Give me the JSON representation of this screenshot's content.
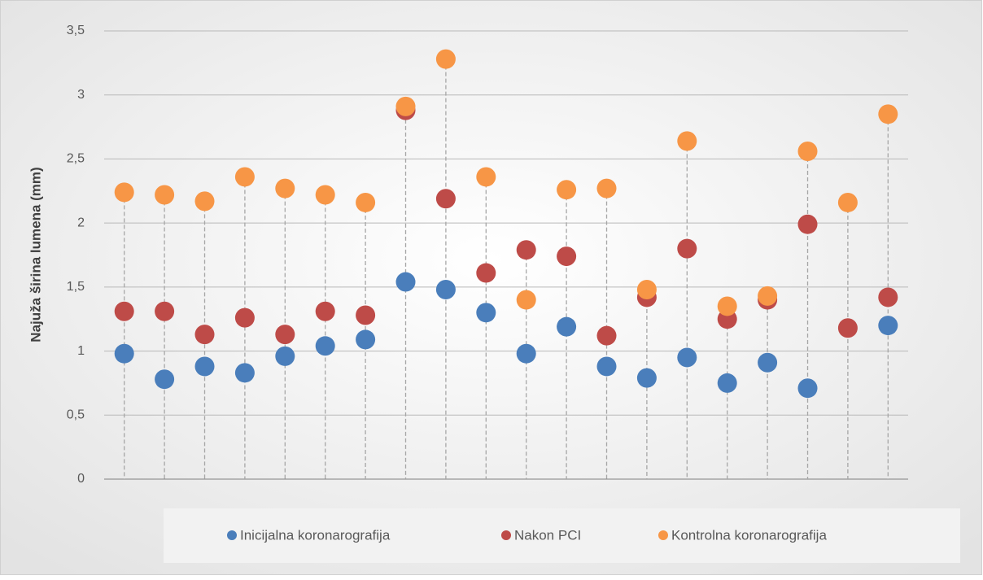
{
  "chart_data": {
    "type": "scatter",
    "ylabel": "Najuža širina lumena (mm)",
    "categories": [
      null,
      null,
      null,
      null,
      null,
      null,
      null,
      null,
      null,
      null,
      null,
      null,
      null,
      null,
      null,
      null,
      null,
      null,
      null,
      null
    ],
    "series": [
      {
        "name": "Inicijalna koronarografija",
        "color": "#4a7ebb",
        "values": [
          0.98,
          0.78,
          0.88,
          0.83,
          0.96,
          1.04,
          1.09,
          1.54,
          1.48,
          1.3,
          0.98,
          1.19,
          0.88,
          0.79,
          0.95,
          0.75,
          0.91,
          0.71,
          null,
          1.2
        ]
      },
      {
        "name": "Nakon PCI",
        "color": "#be4b48",
        "values": [
          1.31,
          1.31,
          1.13,
          1.26,
          1.13,
          1.31,
          1.28,
          2.88,
          2.19,
          1.61,
          1.79,
          1.74,
          1.12,
          1.42,
          1.8,
          1.25,
          1.4,
          1.99,
          1.18,
          1.42
        ]
      },
      {
        "name": "Kontrolna koronarografija",
        "color": "#f79646",
        "values": [
          2.24,
          2.22,
          2.17,
          2.36,
          2.27,
          2.22,
          2.16,
          2.91,
          3.28,
          2.36,
          1.4,
          2.26,
          2.27,
          1.48,
          2.64,
          1.35,
          1.43,
          2.56,
          2.16,
          2.85
        ]
      }
    ],
    "ylim": [
      0,
      3.5
    ],
    "yticks": [
      0,
      {
        "value": 0.5,
        "label": "0,5"
      },
      1,
      {
        "value": 1.5,
        "label": "1,5"
      },
      2,
      {
        "value": 2.5,
        "label": "2,5"
      },
      3,
      {
        "value": 3.5,
        "label": "3,5"
      }
    ],
    "grid": true,
    "legend": "bottom",
    "drop_lines": true
  }
}
